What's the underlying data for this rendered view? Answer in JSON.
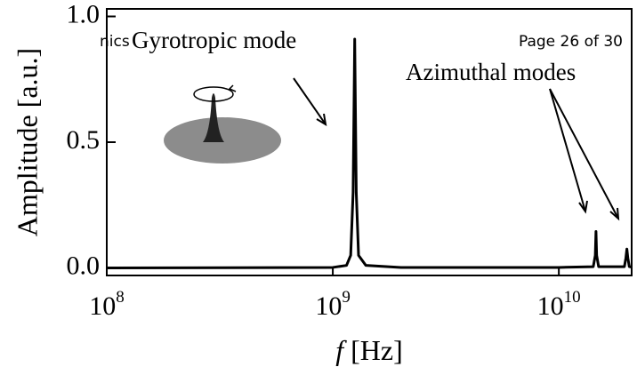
{
  "header_fragment": "nics",
  "page_label": "Page 26 of 30",
  "chart_data": {
    "type": "line",
    "ylabel": "Amplitude [a.u.]",
    "xlabel_symbol": "f",
    "xlabel_unit": "[Hz]",
    "annotations": [
      "Gyrotropic mode",
      "Azimuthal modes"
    ],
    "xscale": "log",
    "color": "#000000",
    "xlim": [
      100000000,
      21000000000
    ],
    "ylim": [
      -0.03,
      1.03
    ],
    "xticks": [
      {
        "value": 100000000,
        "label": "10",
        "exponent": "8"
      },
      {
        "value": 1000000000,
        "label": "10",
        "exponent": "9"
      },
      {
        "value": 10000000000,
        "label": "10",
        "exponent": "10"
      }
    ],
    "yticks": [
      {
        "value": 0,
        "label": "0.0"
      },
      0.5,
      {
        "value": 1,
        "label": "1.0"
      }
    ],
    "x": [
      100000000,
      1000000000,
      1150000000,
      1200000000,
      1230000000,
      1250000000,
      1270000000,
      1300000000,
      1400000000,
      2000000000,
      10000000000,
      14200000000,
      14500000000,
      14600000000,
      14700000000,
      15000000000,
      19500000000,
      19800000000,
      20000000000,
      20200000000,
      20500000000,
      21000000000
    ],
    "values": [
      0,
      0.002,
      0.01,
      0.05,
      0.3,
      0.91,
      0.3,
      0.05,
      0.01,
      0.002,
      0.002,
      0.005,
      0.05,
      0.145,
      0.05,
      0.005,
      0.005,
      0.04,
      0.075,
      0.04,
      0.005,
      0.003
    ]
  }
}
